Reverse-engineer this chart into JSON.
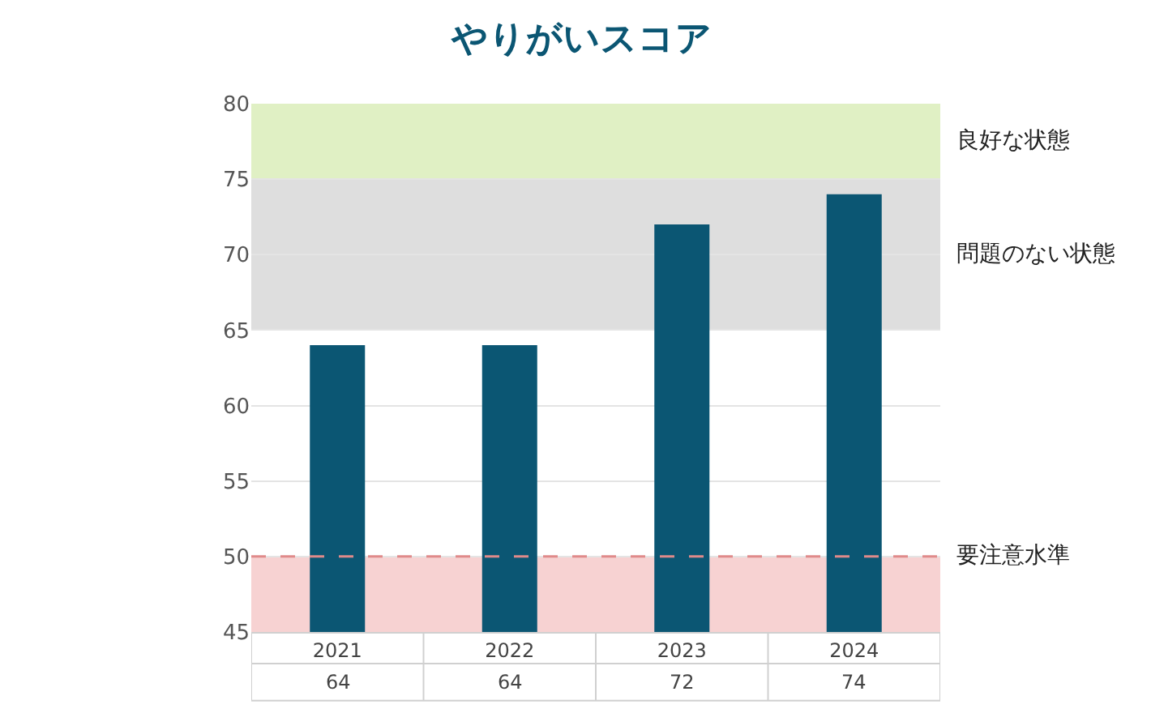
{
  "chart_data": {
    "type": "bar",
    "title": "やりがいスコア",
    "categories": [
      "2021",
      "2022",
      "2023",
      "2024"
    ],
    "series": [
      {
        "color": "#0b5673",
        "values": [
          64,
          64,
          72,
          74
        ]
      }
    ],
    "ylim": [
      45,
      80
    ],
    "yticks": [
      45,
      50,
      55,
      60,
      65,
      70,
      75,
      80
    ],
    "grid": "y",
    "data_labels": true,
    "bands": [
      {
        "axis": "y",
        "from": 75,
        "to": 80,
        "label": "良好な状態",
        "color": "#e0f0c4"
      },
      {
        "axis": "y",
        "from": 65,
        "to": 75,
        "label": "問題のない状態",
        "color": "#dedede"
      },
      {
        "axis": "y",
        "from": 45,
        "to": 50,
        "color": "#f7d2d2"
      }
    ],
    "ref_lines": [
      {
        "axis": "y",
        "value": 50,
        "label": "要注意水準",
        "color": "#e08a8a",
        "line_style": "dashed"
      }
    ]
  }
}
